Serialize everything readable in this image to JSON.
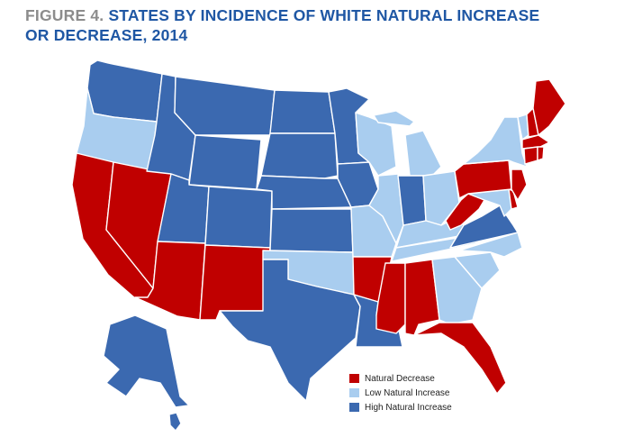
{
  "title": {
    "figure_label": "FIGURE 4.",
    "text": "STATES BY INCIDENCE OF WHITE NATURAL INCREASE OR DECREASE, 2014"
  },
  "colors": {
    "decrease": "#c00000",
    "low_increase": "#a9cdef",
    "high_increase": "#3b69b0",
    "title_figure": "#8c8c8c",
    "title_text": "#1f57a4"
  },
  "legend": [
    {
      "key": "decrease",
      "label": "Natural Decrease"
    },
    {
      "key": "low_increase",
      "label": "Low Natural Increase"
    },
    {
      "key": "high_increase",
      "label": "High Natural Increase"
    }
  ],
  "states": {
    "WA": "high_increase",
    "OR": "low_increase",
    "CA": "decrease",
    "NV": "decrease",
    "ID": "high_increase",
    "MT": "high_increase",
    "WY": "high_increase",
    "UT": "high_increase",
    "AZ": "decrease",
    "CO": "high_increase",
    "NM": "decrease",
    "ND": "high_increase",
    "SD": "high_increase",
    "NE": "high_increase",
    "KS": "high_increase",
    "OK": "low_increase",
    "TX": "high_increase",
    "MN": "high_increase",
    "IA": "high_increase",
    "MO": "low_increase",
    "AR": "decrease",
    "LA": "high_increase",
    "WI": "low_increase",
    "IL": "low_increase",
    "MI": "low_increase",
    "IN": "high_increase",
    "OH": "low_increase",
    "KY": "low_increase",
    "TN": "low_increase",
    "MS": "decrease",
    "AL": "decrease",
    "GA": "low_increase",
    "FL": "decrease",
    "SC": "low_increase",
    "NC": "low_increase",
    "VA": "high_increase",
    "WV": "decrease",
    "MD": "low_increase",
    "DE": "decrease",
    "PA": "decrease",
    "NY": "low_increase",
    "NJ": "decrease",
    "VT": "low_increase",
    "NH": "decrease",
    "ME": "decrease",
    "MA": "decrease",
    "CT": "decrease",
    "RI": "decrease",
    "AK": "high_increase",
    "HI": "high_increase"
  }
}
